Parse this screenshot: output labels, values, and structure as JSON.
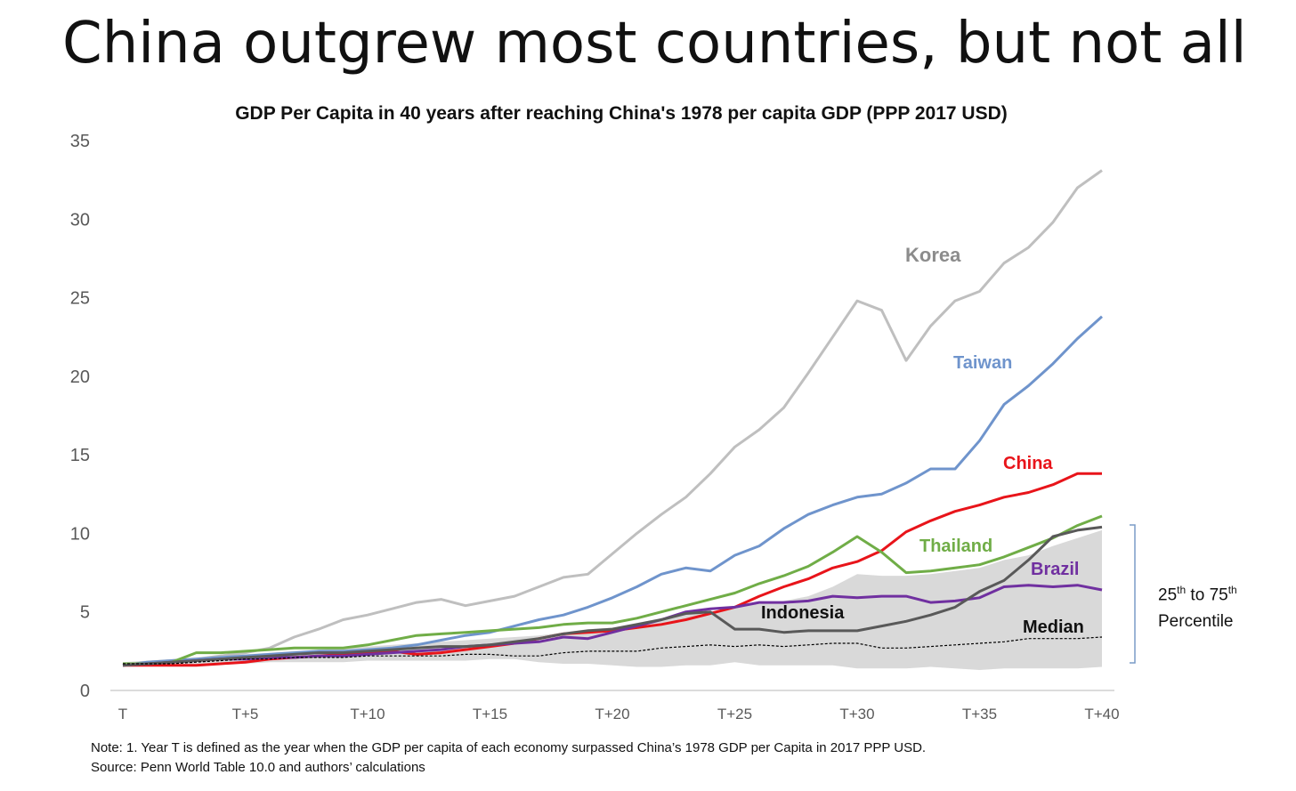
{
  "slide": {
    "title": "China outgrew most countries, but not all"
  },
  "notes": {
    "line1": "Note: 1. Year T is defined as the year when the GDP per capita of each economy surpassed China’s 1978 GDP per Capita in 2017 PPP USD.",
    "line2": "Source: Penn World Table 10.0 and authors’ calculations"
  },
  "percentile_label": {
    "low": "25",
    "low_sup": "th",
    "to": " to ",
    "high": "75",
    "high_sup": "th",
    "line2": "Percentile"
  },
  "chart_data": {
    "type": "line",
    "title": "GDP Per Capita in 40 years after reaching China's 1978 per capita GDP (PPP 2017 USD)",
    "xlabel": "",
    "ylabel": "",
    "x": [
      0,
      1,
      2,
      3,
      4,
      5,
      6,
      7,
      8,
      9,
      10,
      11,
      12,
      13,
      14,
      15,
      16,
      17,
      18,
      19,
      20,
      21,
      22,
      23,
      24,
      25,
      26,
      27,
      28,
      29,
      30,
      31,
      32,
      33,
      34,
      35,
      36,
      37,
      38,
      39,
      40
    ],
    "x_ticks": [
      {
        "x": 0,
        "label": "T"
      },
      {
        "x": 5,
        "label": "T+5"
      },
      {
        "x": 10,
        "label": "T+10"
      },
      {
        "x": 15,
        "label": "T+15"
      },
      {
        "x": 20,
        "label": "T+20"
      },
      {
        "x": 25,
        "label": "T+25"
      },
      {
        "x": 30,
        "label": "T+30"
      },
      {
        "x": 35,
        "label": "T+35"
      },
      {
        "x": 40,
        "label": "T+40"
      }
    ],
    "y_ticks": [
      0,
      5,
      10,
      15,
      20,
      25,
      30,
      35
    ],
    "ylim": [
      0,
      35
    ],
    "xlim": [
      0,
      40
    ],
    "grid": false,
    "band": {
      "name": "25th to 75th Percentile",
      "color": "#d9d9d9",
      "lower": [
        1.6,
        1.6,
        1.6,
        1.6,
        1.7,
        1.7,
        1.8,
        1.8,
        1.8,
        1.8,
        1.9,
        1.9,
        1.9,
        1.9,
        1.9,
        2.0,
        2.0,
        1.8,
        1.7,
        1.7,
        1.6,
        1.5,
        1.5,
        1.6,
        1.6,
        1.8,
        1.6,
        1.6,
        1.6,
        1.6,
        1.4,
        1.4,
        1.4,
        1.5,
        1.4,
        1.3,
        1.4,
        1.4,
        1.4,
        1.4,
        1.5
      ],
      "upper": [
        1.8,
        1.9,
        2.0,
        2.1,
        2.2,
        2.3,
        2.4,
        2.5,
        2.6,
        2.7,
        2.8,
        2.9,
        3.0,
        3.1,
        3.2,
        3.3,
        3.4,
        3.5,
        3.7,
        3.9,
        4.0,
        4.3,
        4.6,
        4.9,
        5.0,
        5.3,
        5.5,
        5.7,
        6.0,
        6.6,
        7.4,
        7.3,
        7.3,
        7.4,
        7.6,
        7.8,
        8.3,
        8.6,
        9.2,
        9.7,
        10.2
      ]
    },
    "series": [
      {
        "name": "Korea",
        "label": "Korea",
        "color": "#bfbfbf",
        "values": [
          1.6,
          1.8,
          1.9,
          2.0,
          2.2,
          2.4,
          2.7,
          3.4,
          3.9,
          4.5,
          4.8,
          5.2,
          5.6,
          5.8,
          5.4,
          5.7,
          6.0,
          6.6,
          7.2,
          7.4,
          8.7,
          10.0,
          11.2,
          12.3,
          13.8,
          15.5,
          16.6,
          18.0,
          20.2,
          22.5,
          24.8,
          24.2,
          21.0,
          23.2,
          24.8,
          25.4,
          27.2,
          28.2,
          29.8,
          32.0,
          33.1
        ]
      },
      {
        "name": "Taiwan",
        "label": "Taiwan",
        "color": "#6f94cc",
        "values": [
          1.6,
          1.8,
          1.9,
          2.0,
          2.1,
          2.2,
          2.3,
          2.4,
          2.5,
          2.5,
          2.6,
          2.7,
          2.9,
          3.2,
          3.5,
          3.7,
          4.1,
          4.5,
          4.8,
          5.3,
          5.9,
          6.6,
          7.4,
          7.8,
          7.6,
          8.6,
          9.2,
          10.3,
          11.2,
          11.8,
          12.3,
          12.5,
          13.2,
          14.1,
          14.1,
          15.9,
          18.2,
          19.4,
          20.8,
          22.4,
          23.8
        ]
      },
      {
        "name": "China",
        "label": "China",
        "color": "#e8141a",
        "values": [
          1.6,
          1.6,
          1.6,
          1.6,
          1.7,
          1.8,
          2.0,
          2.1,
          2.2,
          2.3,
          2.4,
          2.5,
          2.3,
          2.4,
          2.6,
          2.8,
          3.0,
          3.3,
          3.6,
          3.7,
          3.8,
          4.0,
          4.2,
          4.5,
          4.9,
          5.3,
          6.0,
          6.6,
          7.1,
          7.8,
          8.2,
          8.9,
          10.1,
          10.8,
          11.4,
          11.8,
          12.3,
          12.6,
          13.1,
          13.8,
          13.8
        ]
      },
      {
        "name": "Thailand",
        "label": "Thailand",
        "color": "#70ad47",
        "values": [
          1.7,
          1.7,
          1.8,
          2.4,
          2.4,
          2.5,
          2.6,
          2.7,
          2.7,
          2.7,
          2.9,
          3.2,
          3.5,
          3.6,
          3.7,
          3.8,
          3.9,
          4.0,
          4.2,
          4.3,
          4.3,
          4.6,
          5.0,
          5.4,
          5.8,
          6.2,
          6.8,
          7.3,
          7.9,
          8.8,
          9.8,
          8.8,
          7.5,
          7.6,
          7.8,
          8.0,
          8.5,
          9.1,
          9.7,
          10.5,
          11.1
        ]
      },
      {
        "name": "Brazil",
        "label": "Brazil",
        "color": "#7030a0",
        "values": [
          1.6,
          1.7,
          1.8,
          1.9,
          2.0,
          2.0,
          2.1,
          2.1,
          2.2,
          2.2,
          2.3,
          2.4,
          2.5,
          2.6,
          2.8,
          2.9,
          3.0,
          3.1,
          3.4,
          3.3,
          3.7,
          4.1,
          4.5,
          5.0,
          5.2,
          5.3,
          5.6,
          5.6,
          5.7,
          6.0,
          5.9,
          6.0,
          6.0,
          5.6,
          5.7,
          5.9,
          6.6,
          6.7,
          6.6,
          6.7,
          6.4
        ]
      },
      {
        "name": "Indonesia",
        "label": "Indonesia",
        "color": "#595959",
        "values": [
          1.6,
          1.7,
          1.8,
          1.9,
          2.0,
          2.1,
          2.2,
          2.3,
          2.4,
          2.4,
          2.5,
          2.6,
          2.7,
          2.8,
          2.8,
          2.9,
          3.1,
          3.3,
          3.6,
          3.8,
          3.9,
          4.2,
          4.5,
          4.9,
          5.0,
          3.9,
          3.9,
          3.7,
          3.8,
          3.8,
          3.8,
          4.1,
          4.4,
          4.8,
          5.3,
          6.3,
          7.0,
          8.3,
          9.8,
          10.2,
          10.4
        ]
      },
      {
        "name": "Median",
        "label": "Median",
        "color": "#000000",
        "dashed": true,
        "values": [
          1.7,
          1.7,
          1.7,
          1.8,
          1.9,
          2.0,
          2.0,
          2.1,
          2.1,
          2.1,
          2.2,
          2.2,
          2.2,
          2.2,
          2.3,
          2.3,
          2.2,
          2.2,
          2.4,
          2.5,
          2.5,
          2.5,
          2.7,
          2.8,
          2.9,
          2.8,
          2.9,
          2.8,
          2.9,
          3.0,
          3.0,
          2.7,
          2.7,
          2.8,
          2.9,
          3.0,
          3.1,
          3.3,
          3.3,
          3.3,
          3.4
        ]
      }
    ]
  }
}
